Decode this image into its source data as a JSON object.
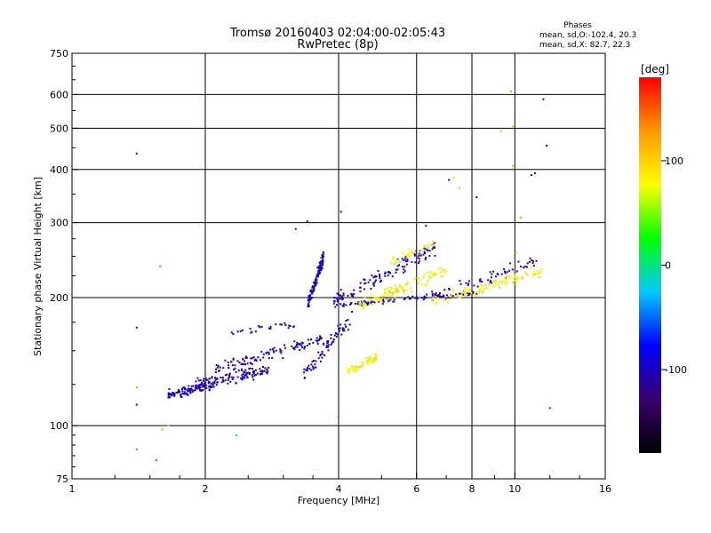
{
  "chart_data": {
    "type": "scatter",
    "title": "Tromsø 20160403 02:04:00-02:05:43",
    "subtitle": "RwPretec (8p)",
    "xlabel": "Frequency [MHz]",
    "ylabel": "Stationary phase Virtual Height [km]",
    "xscale": "log2",
    "yscale": "log",
    "xlim": [
      1,
      16
    ],
    "ylim": [
      75,
      750
    ],
    "x_ticks": [
      1,
      2,
      4,
      6,
      8,
      10,
      16
    ],
    "x_tick_labels": [
      "1",
      "2",
      "4",
      "6",
      "8",
      "10",
      "16"
    ],
    "y_ticks": [
      75,
      100,
      200,
      300,
      400,
      500,
      600,
      750
    ],
    "y_tick_labels": [
      "75",
      "100",
      "200",
      "300",
      "400",
      "500",
      "600",
      "750"
    ],
    "grid": true,
    "stats": {
      "header": "Phases",
      "lines": [
        "mean, sd,O:-102.4, 20.3",
        "mean, sd,X:  82.7, 22.3"
      ]
    },
    "colorbar": {
      "label": "[deg]",
      "range": [
        -180,
        180
      ],
      "ticks": [
        100,
        0,
        -100
      ],
      "tick_labels": [
        "100",
        "0",
        "-100"
      ],
      "stops": [
        "#000000",
        "#3a006e",
        "#0000ff",
        "#00c8ff",
        "#00ff00",
        "#ffff00",
        "#ff9900",
        "#ff0000"
      ]
    },
    "series": [
      {
        "trace": "O",
        "phase_mean": -102.4,
        "phase_sd": 20.3,
        "segments": [
          {
            "f": [
              1.65,
              2.1
            ],
            "h": [
              118,
              125
            ],
            "jitter": 0.04,
            "n": 110
          },
          {
            "f": [
              1.9,
              2.8
            ],
            "h": [
              126,
              135
            ],
            "jitter": 0.045,
            "n": 120
          },
          {
            "f": [
              2.1,
              3.7
            ],
            "h": [
              135,
              160
            ],
            "jitter": 0.05,
            "n": 110
          },
          {
            "f": [
              2.2,
              3.2
            ],
            "h": [
              165,
              172
            ],
            "jitter": 0.03,
            "n": 25
          },
          {
            "f": [
              3.4,
              3.7
            ],
            "h": [
              190,
              250
            ],
            "jitter": 0.05,
            "n": 120
          },
          {
            "f": [
              3.3,
              4.3
            ],
            "h": [
              130,
              180
            ],
            "jitter": 0.06,
            "n": 70
          },
          {
            "f": [
              3.9,
              6.6
            ],
            "h": [
              196,
              262
            ],
            "jitter": 0.06,
            "n": 120
          },
          {
            "f": [
              4.0,
              8.3
            ],
            "h": [
              192,
              205
            ],
            "jitter": 0.02,
            "n": 90
          },
          {
            "f": [
              6.5,
              11.2
            ],
            "h": [
              200,
              245
            ],
            "jitter": 0.05,
            "n": 60
          }
        ]
      },
      {
        "trace": "X",
        "phase_mean": 82.7,
        "phase_sd": 22.3,
        "segments": [
          {
            "f": [
              4.2,
              4.9
            ],
            "h": [
              134,
              145
            ],
            "jitter": 0.03,
            "n": 60
          },
          {
            "f": [
              4.4,
              7.0
            ],
            "h": [
              192,
              232
            ],
            "jitter": 0.05,
            "n": 110
          },
          {
            "f": [
              5.2,
              6.6
            ],
            "h": [
              240,
              270
            ],
            "jitter": 0.04,
            "n": 35
          },
          {
            "f": [
              6.5,
              11.5
            ],
            "h": [
              195,
              230
            ],
            "jitter": 0.045,
            "n": 110
          }
        ]
      }
    ],
    "points": [
      {
        "x": 1.4,
        "y": 436,
        "phase": -120
      },
      {
        "x": 1.4,
        "y": 170,
        "phase": -110
      },
      {
        "x": 1.4,
        "y": 112,
        "phase": -110
      },
      {
        "x": 1.4,
        "y": 123,
        "phase": 130
      },
      {
        "x": 1.4,
        "y": 88,
        "phase": 150
      },
      {
        "x": 1.55,
        "y": 83,
        "phase": 160
      },
      {
        "x": 1.58,
        "y": 237,
        "phase": 30
      },
      {
        "x": 1.6,
        "y": 98,
        "phase": 40
      },
      {
        "x": 1.65,
        "y": 100,
        "phase": 60
      },
      {
        "x": 2.35,
        "y": 95,
        "phase": 20
      },
      {
        "x": 3.2,
        "y": 290,
        "phase": -120
      },
      {
        "x": 3.4,
        "y": 302,
        "phase": -130
      },
      {
        "x": 4.0,
        "y": 105,
        "phase": 160
      },
      {
        "x": 4.05,
        "y": 318,
        "phase": -110
      },
      {
        "x": 6.3,
        "y": 295,
        "phase": -120
      },
      {
        "x": 7.1,
        "y": 378,
        "phase": -100
      },
      {
        "x": 7.3,
        "y": 382,
        "phase": 90
      },
      {
        "x": 7.5,
        "y": 362,
        "phase": 110
      },
      {
        "x": 8.2,
        "y": 344,
        "phase": -120
      },
      {
        "x": 9.3,
        "y": 492,
        "phase": 120
      },
      {
        "x": 9.8,
        "y": 610,
        "phase": 130
      },
      {
        "x": 9.9,
        "y": 505,
        "phase": 110
      },
      {
        "x": 9.9,
        "y": 408,
        "phase": 120
      },
      {
        "x": 10.9,
        "y": 388,
        "phase": -110
      },
      {
        "x": 11.1,
        "y": 392,
        "phase": -100
      },
      {
        "x": 11.6,
        "y": 585,
        "phase": -120
      },
      {
        "x": 11.8,
        "y": 455,
        "phase": -80
      },
      {
        "x": 12.0,
        "y": 110,
        "phase": -60
      },
      {
        "x": 10.3,
        "y": 308,
        "phase": 130
      },
      {
        "x": 10.1,
        "y": 255,
        "phase": 100
      }
    ]
  }
}
